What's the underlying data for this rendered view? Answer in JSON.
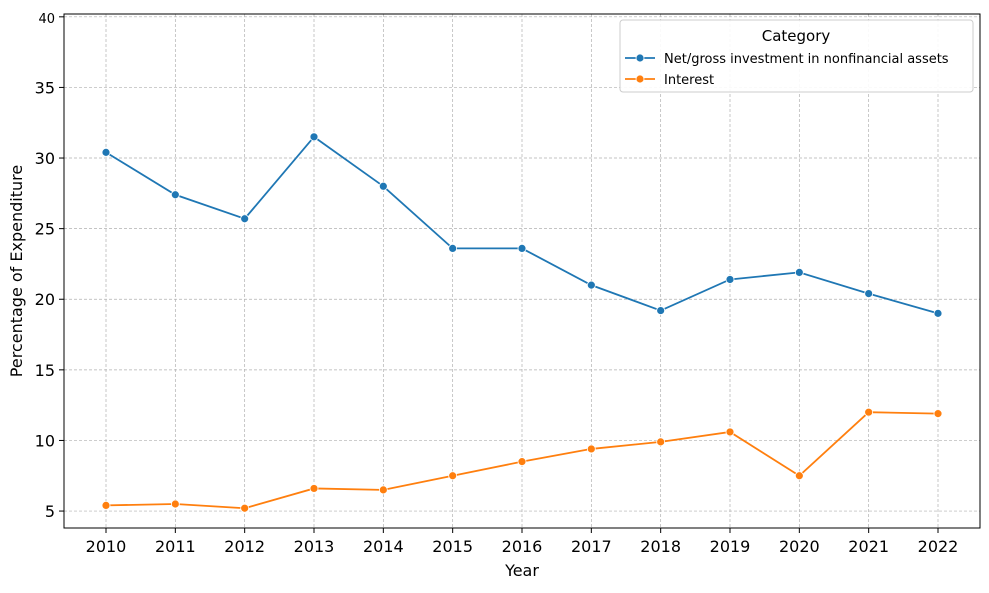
{
  "chart_data": {
    "type": "line",
    "title": "",
    "xlabel": "Year",
    "ylabel": "Percentage of Expenditure",
    "x": [
      2010,
      2011,
      2012,
      2013,
      2014,
      2015,
      2016,
      2017,
      2018,
      2019,
      2020,
      2021,
      2022
    ],
    "xticks": [
      "2010",
      "2011",
      "2012",
      "2013",
      "2014",
      "2015",
      "2016",
      "2017",
      "2018",
      "2019",
      "2020",
      "2021",
      "2022"
    ],
    "yticks": [
      "5",
      "10",
      "15",
      "20",
      "25",
      "30",
      "35",
      "40"
    ],
    "ylim": [
      3.8,
      40.2
    ],
    "grid": true,
    "legend": {
      "title": "Category",
      "placement": "top-right"
    },
    "series": [
      {
        "name": "Net/gross investment in nonfinancial assets",
        "color": "#1f77b4",
        "values": [
          30.4,
          27.4,
          25.7,
          31.5,
          28.0,
          23.6,
          23.6,
          21.0,
          19.2,
          21.4,
          21.9,
          20.4,
          19.0
        ]
      },
      {
        "name": "Interest",
        "color": "#ff7f0e",
        "values": [
          5.4,
          5.5,
          5.2,
          6.6,
          6.5,
          7.5,
          8.5,
          9.4,
          9.9,
          10.6,
          7.5,
          12.0,
          11.9
        ]
      }
    ]
  }
}
